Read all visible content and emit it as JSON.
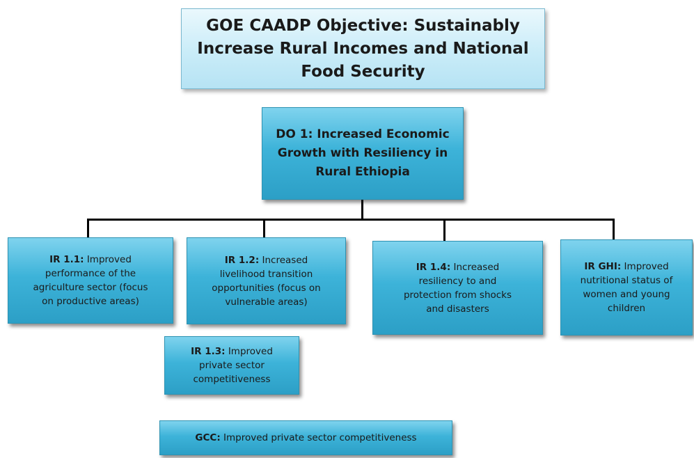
{
  "goal": {
    "lines": [
      "GOE CAADP Objective: Sustainably",
      "Increase Rural Incomes and National",
      "Food Security"
    ]
  },
  "do1": {
    "lines": [
      "DO 1: Increased Economic",
      "Growth with Resiliency in",
      "Rural Ethiopia"
    ]
  },
  "ir11": {
    "code": "IR 1.1:",
    "lines": [
      " Improved",
      "performance of the",
      "agriculture sector (focus",
      "on productive areas)"
    ]
  },
  "ir12": {
    "code": "IR 1.2:",
    "lines": "  Increased|livelihood transition|opportunities  (focus on|vulnerable areas)"
  },
  "ir14": {
    "code": "IR 1.4:",
    "lines": [
      "  Increased",
      "resiliency to and",
      "protection from shocks",
      "and disasters"
    ]
  },
  "irghi": {
    "code": "IR GHI:",
    "lines": [
      " Improved",
      "nutritional status of",
      "women and young",
      "children"
    ]
  },
  "ir13": {
    "code": "IR 1.3:",
    "lines": [
      " Improved",
      "private sector",
      "competitiveness"
    ]
  },
  "gcc": {
    "code": "GCC:",
    "text": " Improved private sector competitiveness"
  }
}
